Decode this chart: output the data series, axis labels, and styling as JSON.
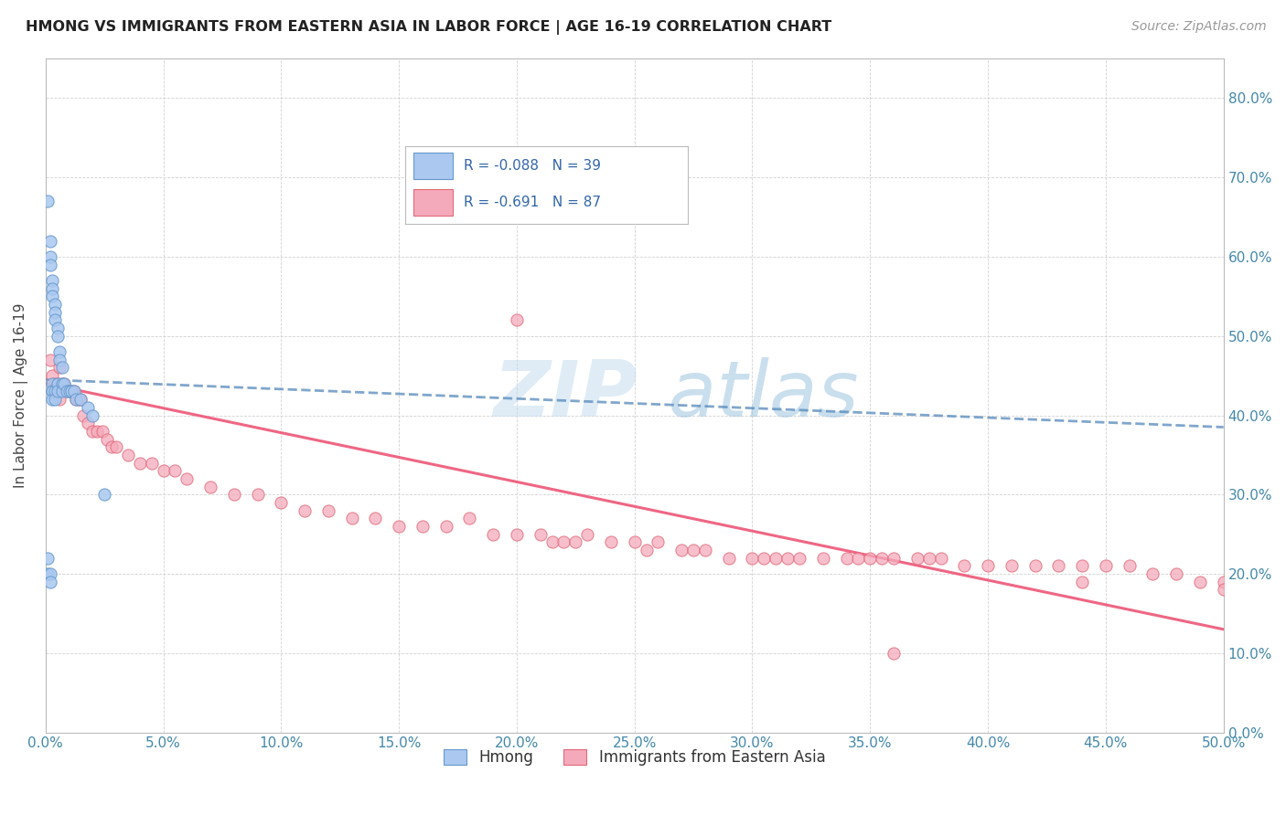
{
  "title": "HMONG VS IMMIGRANTS FROM EASTERN ASIA IN LABOR FORCE | AGE 16-19 CORRELATION CHART",
  "source": "Source: ZipAtlas.com",
  "ylabel": "In Labor Force | Age 16-19",
  "xlim": [
    0.0,
    0.5
  ],
  "ylim": [
    0.0,
    0.85
  ],
  "hmong_color": "#aac8f0",
  "hmong_edge_color": "#6699cc",
  "eastern_color": "#f5aabb",
  "eastern_edge_color": "#e06878",
  "hmong_trend_color": "#5588bb",
  "eastern_trend_color": "#ee5577",
  "hmong_R": -0.088,
  "hmong_N": 39,
  "eastern_R": -0.691,
  "eastern_N": 87,
  "hmong_x": [
    0.001,
    0.001,
    0.001,
    0.002,
    0.002,
    0.002,
    0.002,
    0.002,
    0.003,
    0.003,
    0.003,
    0.003,
    0.003,
    0.003,
    0.003,
    0.004,
    0.004,
    0.004,
    0.004,
    0.004,
    0.005,
    0.005,
    0.005,
    0.005,
    0.006,
    0.006,
    0.007,
    0.007,
    0.007,
    0.008,
    0.009,
    0.01,
    0.011,
    0.012,
    0.013,
    0.015,
    0.018,
    0.02,
    0.025
  ],
  "hmong_y": [
    0.67,
    0.22,
    0.2,
    0.62,
    0.6,
    0.59,
    0.2,
    0.19,
    0.57,
    0.56,
    0.55,
    0.44,
    0.43,
    0.43,
    0.42,
    0.54,
    0.53,
    0.52,
    0.43,
    0.42,
    0.51,
    0.5,
    0.44,
    0.43,
    0.48,
    0.47,
    0.46,
    0.44,
    0.43,
    0.44,
    0.43,
    0.43,
    0.43,
    0.43,
    0.42,
    0.42,
    0.41,
    0.4,
    0.3
  ],
  "eastern_x": [
    0.002,
    0.003,
    0.004,
    0.005,
    0.005,
    0.006,
    0.006,
    0.007,
    0.008,
    0.009,
    0.01,
    0.011,
    0.012,
    0.013,
    0.014,
    0.015,
    0.016,
    0.018,
    0.02,
    0.022,
    0.024,
    0.026,
    0.028,
    0.03,
    0.035,
    0.04,
    0.045,
    0.05,
    0.055,
    0.06,
    0.07,
    0.08,
    0.09,
    0.1,
    0.11,
    0.12,
    0.13,
    0.14,
    0.15,
    0.16,
    0.17,
    0.18,
    0.19,
    0.2,
    0.21,
    0.215,
    0.22,
    0.225,
    0.23,
    0.24,
    0.25,
    0.255,
    0.26,
    0.27,
    0.275,
    0.28,
    0.29,
    0.3,
    0.305,
    0.31,
    0.315,
    0.32,
    0.33,
    0.34,
    0.345,
    0.35,
    0.355,
    0.36,
    0.37,
    0.375,
    0.38,
    0.39,
    0.4,
    0.41,
    0.42,
    0.43,
    0.44,
    0.45,
    0.46,
    0.47,
    0.48,
    0.49,
    0.5,
    0.5,
    0.44,
    0.36,
    0.2
  ],
  "eastern_y": [
    0.47,
    0.45,
    0.44,
    0.44,
    0.43,
    0.42,
    0.46,
    0.44,
    0.44,
    0.43,
    0.43,
    0.43,
    0.43,
    0.42,
    0.42,
    0.42,
    0.4,
    0.39,
    0.38,
    0.38,
    0.38,
    0.37,
    0.36,
    0.36,
    0.35,
    0.34,
    0.34,
    0.33,
    0.33,
    0.32,
    0.31,
    0.3,
    0.3,
    0.29,
    0.28,
    0.28,
    0.27,
    0.27,
    0.26,
    0.26,
    0.26,
    0.27,
    0.25,
    0.25,
    0.25,
    0.24,
    0.24,
    0.24,
    0.25,
    0.24,
    0.24,
    0.23,
    0.24,
    0.23,
    0.23,
    0.23,
    0.22,
    0.22,
    0.22,
    0.22,
    0.22,
    0.22,
    0.22,
    0.22,
    0.22,
    0.22,
    0.22,
    0.22,
    0.22,
    0.22,
    0.22,
    0.21,
    0.21,
    0.21,
    0.21,
    0.21,
    0.21,
    0.21,
    0.21,
    0.2,
    0.2,
    0.19,
    0.19,
    0.18,
    0.19,
    0.1,
    0.52
  ]
}
